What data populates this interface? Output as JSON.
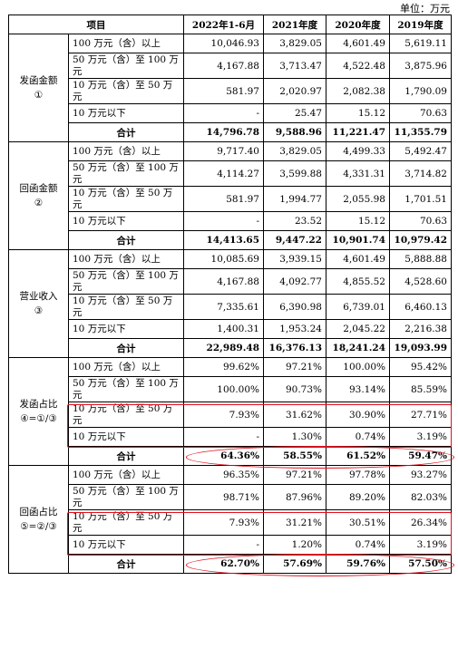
{
  "unit_label": "单位：万元",
  "headers": [
    "项目",
    "2022年1-6月",
    "2021年度",
    "2020年度",
    "2019年度"
  ],
  "groups": [
    {
      "label": [
        "发函金额",
        "①"
      ],
      "rows": [
        {
          "label": "100 万元（含）以上",
          "values": [
            "10,046.93",
            "3,829.05",
            "4,601.49",
            "5,619.11"
          ]
        },
        {
          "label": "50 万元（含）至 100 万元",
          "values": [
            "4,167.88",
            "3,713.47",
            "4,522.48",
            "3,875.96"
          ]
        },
        {
          "label": "10 万元（含）至 50 万元",
          "values": [
            "581.97",
            "2,020.97",
            "2,082.38",
            "1,790.09"
          ]
        },
        {
          "label": "10 万元以下",
          "values": [
            "-",
            "25.47",
            "15.12",
            "70.63"
          ]
        }
      ],
      "total": {
        "label": "合计",
        "values": [
          "14,796.78",
          "9,588.96",
          "11,221.47",
          "11,355.79"
        ]
      }
    },
    {
      "label": [
        "回函金额",
        "②"
      ],
      "rows": [
        {
          "label": "100 万元（含）以上",
          "values": [
            "9,717.40",
            "3,829.05",
            "4,499.33",
            "5,492.47"
          ]
        },
        {
          "label": "50 万元（含）至 100 万元",
          "values": [
            "4,114.27",
            "3,599.88",
            "4,331.31",
            "3,714.82"
          ]
        },
        {
          "label": "10 万元（含）至 50 万元",
          "values": [
            "581.97",
            "1,994.77",
            "2,055.98",
            "1,701.51"
          ]
        },
        {
          "label": "10 万元以下",
          "values": [
            "-",
            "23.52",
            "15.12",
            "70.63"
          ]
        }
      ],
      "total": {
        "label": "合计",
        "values": [
          "14,413.65",
          "9,447.22",
          "10,901.74",
          "10,979.42"
        ]
      }
    },
    {
      "label": [
        "营业收入",
        "③"
      ],
      "rows": [
        {
          "label": "100 万元（含）以上",
          "values": [
            "10,085.69",
            "3,939.15",
            "4,601.49",
            "5,888.88"
          ]
        },
        {
          "label": "50 万元（含）至 100 万元",
          "values": [
            "4,167.88",
            "4,092.77",
            "4,855.52",
            "4,528.60"
          ]
        },
        {
          "label": "10 万元（含）至 50 万元",
          "values": [
            "7,335.61",
            "6,390.98",
            "6,739.01",
            "6,460.13"
          ]
        },
        {
          "label": "10 万元以下",
          "values": [
            "1,400.31",
            "1,953.24",
            "2,045.22",
            "2,216.38"
          ]
        }
      ],
      "total": {
        "label": "合计",
        "values": [
          "22,989.48",
          "16,376.13",
          "18,241.24",
          "19,093.99"
        ]
      }
    },
    {
      "label": [
        "发函占比",
        "④=①/③"
      ],
      "rows": [
        {
          "label": "100 万元（含）以上",
          "values": [
            "99.62%",
            "97.21%",
            "100.00%",
            "95.42%"
          ]
        },
        {
          "label": "50 万元（含）至 100 万元",
          "values": [
            "100.00%",
            "90.73%",
            "93.14%",
            "85.59%"
          ]
        },
        {
          "label": "10 万元（含）至 50 万元",
          "values": [
            "7.93%",
            "31.62%",
            "30.90%",
            "27.71%"
          ]
        },
        {
          "label": "10 万元以下",
          "values": [
            "-",
            "1.30%",
            "0.74%",
            "3.19%"
          ]
        }
      ],
      "total": {
        "label": "合计",
        "values": [
          "64.36%",
          "58.55%",
          "61.52%",
          "59.47%"
        ]
      }
    },
    {
      "label": [
        "回函占比",
        "⑤=②/③"
      ],
      "rows": [
        {
          "label": "100 万元（含）以上",
          "values": [
            "96.35%",
            "97.21%",
            "97.78%",
            "93.27%"
          ]
        },
        {
          "label": "50 万元（含）至 100 万元",
          "values": [
            "98.71%",
            "87.96%",
            "89.20%",
            "82.03%"
          ]
        },
        {
          "label": "10 万元（含）至 50 万元",
          "values": [
            "7.93%",
            "31.21%",
            "30.51%",
            "26.34%"
          ]
        },
        {
          "label": "10 万元以下",
          "values": [
            "-",
            "1.20%",
            "0.74%",
            "3.19%"
          ]
        }
      ],
      "total": {
        "label": "合计",
        "values": [
          "62.70%",
          "57.69%",
          "59.76%",
          "57.50%"
        ]
      }
    }
  ],
  "annotation_color": "#e0101c"
}
